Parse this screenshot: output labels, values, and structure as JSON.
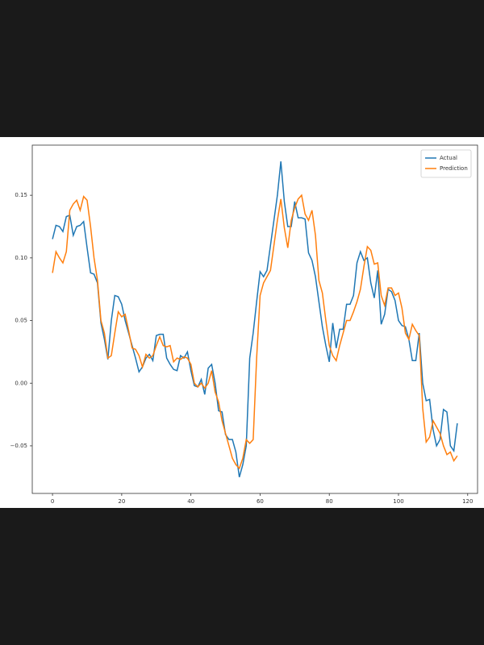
{
  "chart_data": {
    "type": "line",
    "x": [
      0,
      1,
      2,
      3,
      4,
      5,
      6,
      7,
      8,
      9,
      10,
      11,
      12,
      13,
      14,
      15,
      16,
      17,
      18,
      19,
      20,
      21,
      22,
      23,
      24,
      25,
      26,
      27,
      28,
      29,
      30,
      31,
      32,
      33,
      34,
      35,
      36,
      37,
      38,
      39,
      40,
      41,
      42,
      43,
      44,
      45,
      46,
      47,
      48,
      49,
      50,
      51,
      52,
      53,
      54,
      55,
      56,
      57,
      58,
      59,
      60,
      61,
      62,
      63,
      64,
      65,
      66,
      67,
      68,
      69,
      70,
      71,
      72,
      73,
      74,
      75,
      76,
      77,
      78,
      79,
      80,
      81,
      82,
      83,
      84,
      85,
      86,
      87,
      88,
      89,
      90,
      91,
      92,
      93,
      94,
      95,
      96,
      97,
      98,
      99,
      100,
      101,
      102,
      103,
      104,
      105,
      106,
      107,
      108,
      109,
      110,
      111,
      112,
      113,
      114,
      115,
      116,
      117
    ],
    "series": [
      {
        "name": "Actual",
        "color": "#1f77b4",
        "values": [
          0.115,
          0.126,
          0.125,
          0.121,
          0.133,
          0.134,
          0.118,
          0.125,
          0.126,
          0.129,
          0.108,
          0.088,
          0.087,
          0.08,
          0.048,
          0.035,
          0.019,
          0.05,
          0.07,
          0.069,
          0.063,
          0.05,
          0.04,
          0.03,
          0.02,
          0.009,
          0.013,
          0.02,
          0.023,
          0.018,
          0.038,
          0.039,
          0.039,
          0.02,
          0.015,
          0.011,
          0.01,
          0.022,
          0.02,
          0.025,
          0.01,
          -0.002,
          -0.003,
          0.003,
          -0.009,
          0.012,
          0.015,
          0.0,
          -0.022,
          -0.023,
          -0.041,
          -0.045,
          -0.045,
          -0.055,
          -0.075,
          -0.065,
          -0.05,
          0.02,
          0.04,
          0.065,
          0.089,
          0.085,
          0.09,
          0.11,
          0.13,
          0.15,
          0.177,
          0.145,
          0.125,
          0.125,
          0.145,
          0.132,
          0.132,
          0.131,
          0.104,
          0.098,
          0.085,
          0.065,
          0.045,
          0.03,
          0.017,
          0.048,
          0.028,
          0.043,
          0.043,
          0.063,
          0.063,
          0.07,
          0.096,
          0.105,
          0.098,
          0.1,
          0.08,
          0.068,
          0.09,
          0.047,
          0.055,
          0.075,
          0.073,
          0.066,
          0.05,
          0.046,
          0.045,
          0.035,
          0.018,
          0.018,
          0.04,
          0.0,
          -0.014,
          -0.013,
          -0.037,
          -0.05,
          -0.045,
          -0.021,
          -0.023,
          -0.05,
          -0.054,
          -0.032
        ]
      },
      {
        "name": "Prediction",
        "color": "#ff7f0e",
        "values": [
          0.088,
          0.105,
          0.1,
          0.096,
          0.105,
          0.138,
          0.143,
          0.146,
          0.138,
          0.149,
          0.146,
          0.125,
          0.1,
          0.082,
          0.05,
          0.04,
          0.02,
          0.022,
          0.04,
          0.057,
          0.053,
          0.055,
          0.042,
          0.028,
          0.027,
          0.022,
          0.013,
          0.023,
          0.02,
          0.022,
          0.03,
          0.037,
          0.03,
          0.029,
          0.03,
          0.017,
          0.02,
          0.019,
          0.021,
          0.02,
          0.015,
          0.0,
          -0.003,
          0.0,
          -0.004,
          0.0,
          0.01,
          -0.007,
          -0.015,
          -0.03,
          -0.04,
          -0.05,
          -0.06,
          -0.065,
          -0.068,
          -0.06,
          -0.045,
          -0.048,
          -0.045,
          0.02,
          0.07,
          0.08,
          0.085,
          0.09,
          0.11,
          0.13,
          0.147,
          0.124,
          0.108,
          0.13,
          0.14,
          0.147,
          0.15,
          0.135,
          0.13,
          0.138,
          0.118,
          0.082,
          0.072,
          0.05,
          0.03,
          0.022,
          0.018,
          0.03,
          0.04,
          0.05,
          0.05,
          0.057,
          0.065,
          0.075,
          0.093,
          0.109,
          0.106,
          0.095,
          0.096,
          0.07,
          0.062,
          0.076,
          0.076,
          0.07,
          0.072,
          0.06,
          0.04,
          0.035,
          0.047,
          0.042,
          0.038,
          -0.02,
          -0.047,
          -0.043,
          -0.03,
          -0.035,
          -0.04,
          -0.05,
          -0.057,
          -0.055,
          -0.062,
          -0.058
        ]
      }
    ],
    "xlim": [
      -5.85,
      122.85
    ],
    "xticks": [
      0,
      20,
      40,
      60,
      80,
      100,
      120
    ],
    "ylim": [
      -0.088,
      0.19
    ],
    "yticks": [
      {
        "value": -0.05,
        "label": "−0.05"
      },
      {
        "value": 0,
        "label": "0.00"
      },
      0.05,
      {
        "value": 0.1,
        "label": "0.10"
      },
      {
        "value": 0.15,
        "label": "0.15"
      }
    ],
    "legend": "upper right"
  }
}
